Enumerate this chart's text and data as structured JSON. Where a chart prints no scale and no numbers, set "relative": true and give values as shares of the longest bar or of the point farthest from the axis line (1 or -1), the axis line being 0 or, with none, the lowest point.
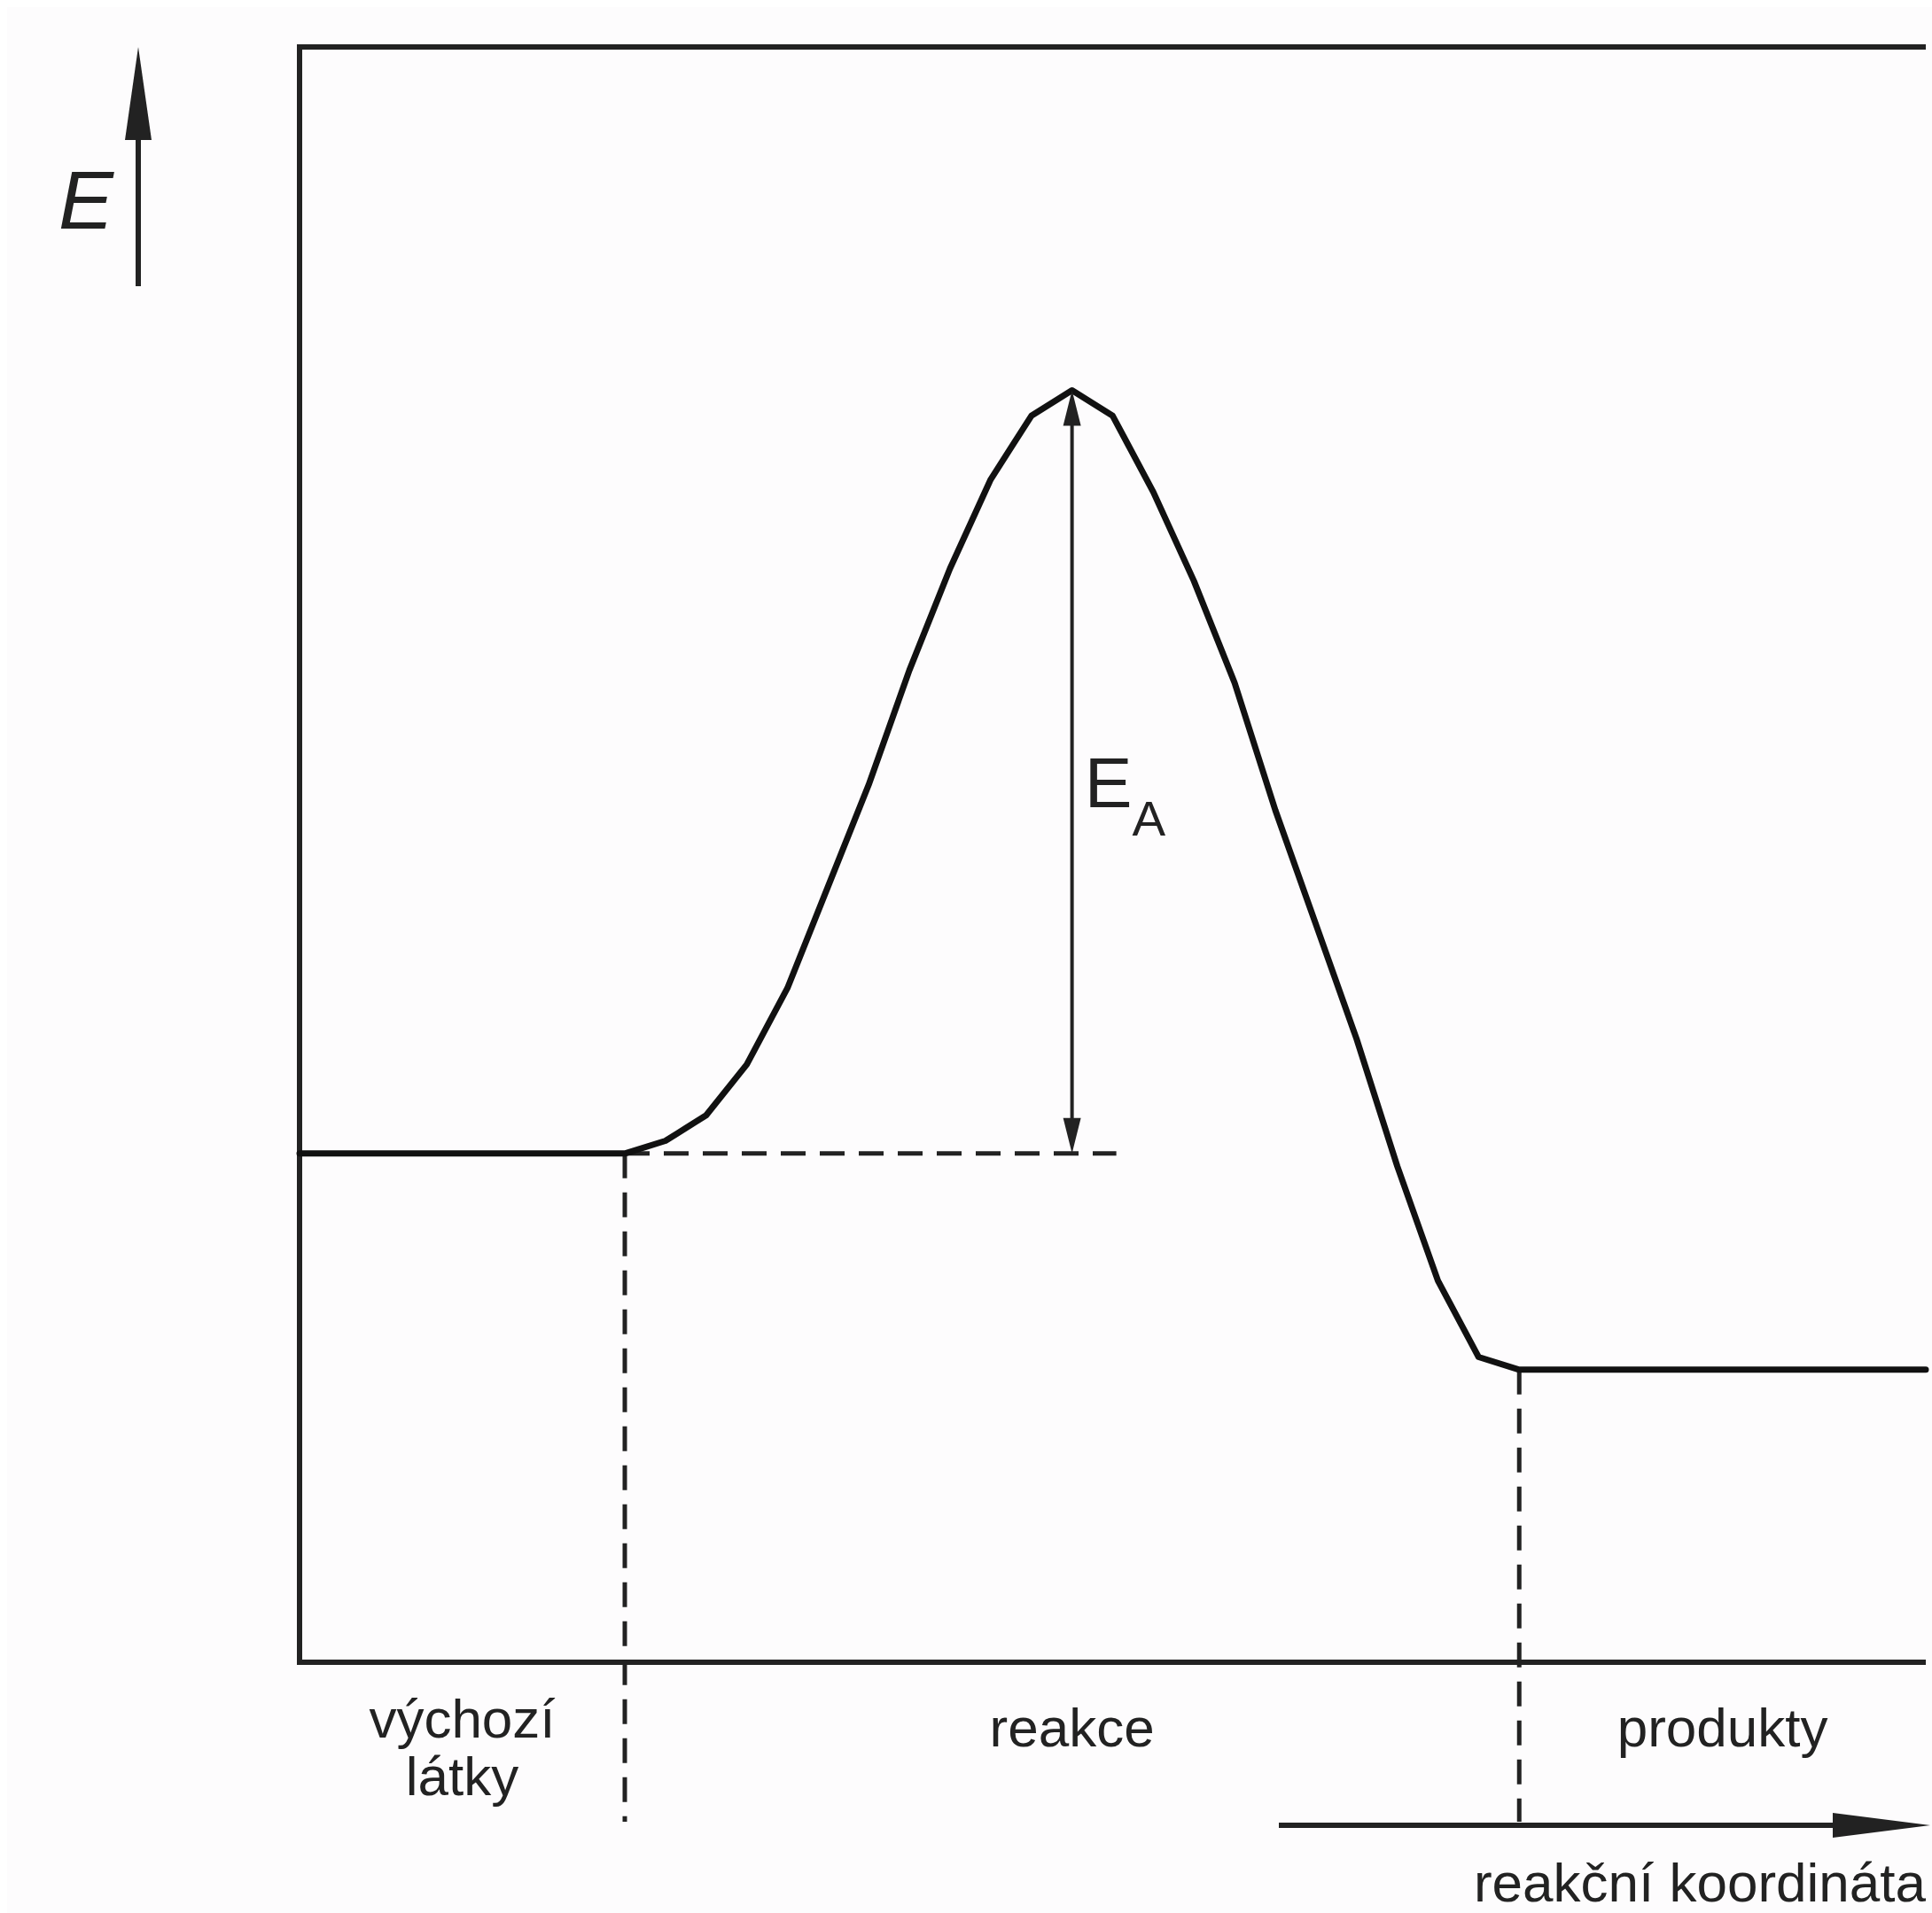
{
  "chart_data": {
    "type": "line",
    "relative": true,
    "xlabel": "reakční koordináta",
    "ylabel": "E",
    "marker": "none",
    "line_style": "solid",
    "categories": [
      null,
      null,
      null,
      null,
      null,
      null,
      null,
      null,
      null,
      null,
      null,
      null,
      null,
      null,
      null,
      null,
      null,
      null,
      null,
      null,
      null,
      null,
      null,
      null,
      null,
      null,
      null,
      null,
      null,
      null,
      null,
      null,
      null,
      null,
      null,
      null,
      null,
      null,
      null,
      null,
      null
    ],
    "series": [
      {
        "color": "#111111",
        "values": [
          0.4,
          0.4,
          0.4,
          0.4,
          0.4,
          0.4,
          0.4,
          0.4,
          0.4,
          0.41,
          0.43,
          0.47,
          0.53,
          0.61,
          0.69,
          0.78,
          0.86,
          0.93,
          0.98,
          1,
          0.98,
          0.92,
          0.85,
          0.77,
          0.67,
          0.58,
          0.49,
          0.39,
          0.3,
          0.24,
          0.23,
          0.23,
          0.23,
          0.23,
          0.23,
          0.23,
          0.23,
          0.23,
          0.23,
          0.23,
          0.23
        ]
      }
    ],
    "annotations": [
      "E$_{A}$",
      "výchozí látky",
      "reakce",
      "produkty"
    ]
  }
}
